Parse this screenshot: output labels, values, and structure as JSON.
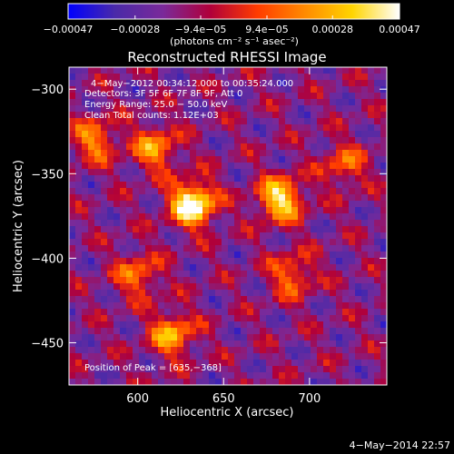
{
  "chart_data": {
    "type": "heatmap",
    "title": "Reconstructed RHESSI Image",
    "xlabel": "Heliocentric X (arcsec)",
    "ylabel": "Heliocentric Y (arcsec)",
    "xlim": [
      560,
      745
    ],
    "ylim": [
      -475,
      -287
    ],
    "x_ticks": [
      600,
      650,
      700
    ],
    "x_tick_labels": [
      "600",
      "650",
      "700"
    ],
    "y_ticks": [
      -300,
      -350,
      -400,
      -450
    ],
    "y_tick_labels": [
      "−300",
      "−350",
      "−400",
      "−450"
    ],
    "colorbar": {
      "range": [
        -0.00047,
        0.00047
      ],
      "ticks": [
        -0.00047,
        -0.00028,
        -9.4e-05,
        9.4e-05,
        0.00028,
        0.00047
      ],
      "tick_labels": [
        "−0.00047",
        "−0.00028",
        "−9.4e−05",
        "9.4e−05",
        "0.00028",
        "0.00047"
      ],
      "units_label": "(photons cm⁻² s⁻¹ asec⁻²)",
      "colors": [
        "#0000ff",
        "#4a2aa8",
        "#7a2a9a",
        "#b0003a",
        "#ff3c00",
        "#ff8a00",
        "#ffd400",
        "#ffffff"
      ]
    },
    "info_lines": [
      "4−May−2012 00:34:12.000 to 00:35:24.000",
      "Detectors: 3F 5F 6F 7F 8F 9F, Att 0",
      "Energy Range: 25.0 − 50.0 keV",
      "Clean    Total counts: 1.12E+03"
    ],
    "peak_label": "Position of Peak = [635,−368]",
    "peak_position": [
      635,
      -368
    ],
    "sources": [
      {
        "x": 632,
        "y": -368,
        "strength": 1.0
      },
      {
        "x": 683,
        "y": -365,
        "strength": 0.8
      },
      {
        "x": 610,
        "y": -335,
        "strength": 0.55
      },
      {
        "x": 575,
        "y": -330,
        "strength": 0.5
      },
      {
        "x": 620,
        "y": -445,
        "strength": 0.6
      },
      {
        "x": 600,
        "y": -410,
        "strength": 0.45
      },
      {
        "x": 690,
        "y": -410,
        "strength": 0.45
      },
      {
        "x": 720,
        "y": -345,
        "strength": 0.4
      }
    ],
    "timestamp": "4−May−2014 22:57"
  }
}
